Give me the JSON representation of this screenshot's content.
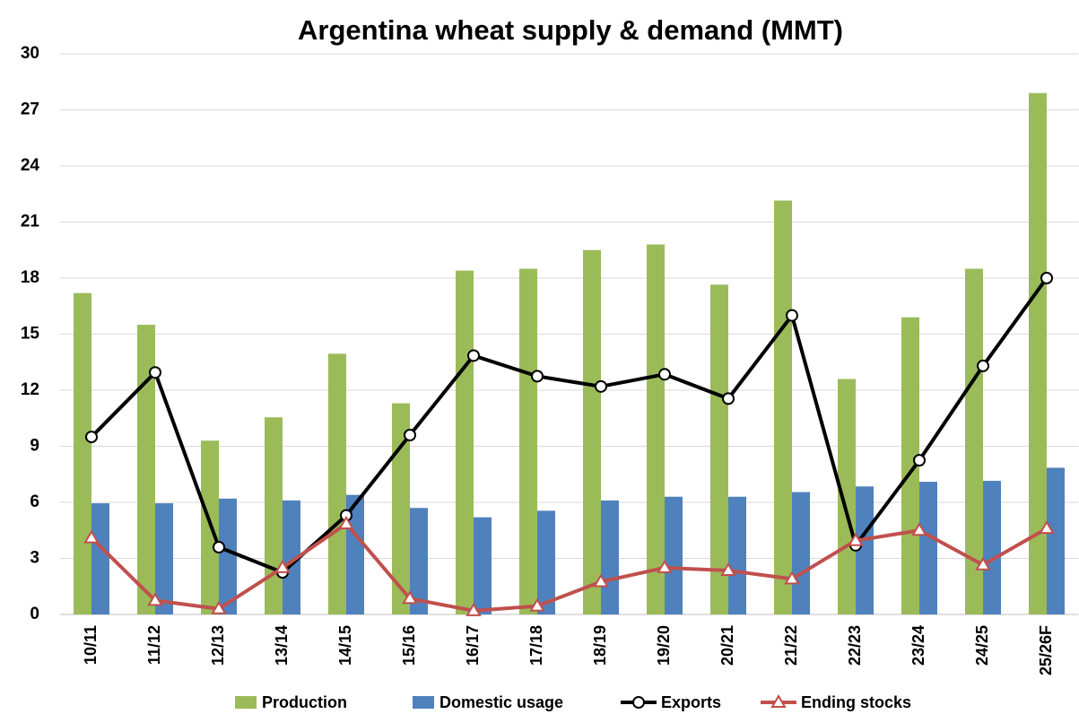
{
  "chart_data": {
    "type": "bar",
    "title": "Argentina wheat supply & demand (MMT)",
    "categories": [
      "10/11",
      "11/12",
      "12/13",
      "13/14",
      "14/15",
      "15/16",
      "16/17",
      "17/18",
      "18/19",
      "19/20",
      "20/21",
      "21/22",
      "22/23",
      "23/24",
      "24/25",
      "25/26F"
    ],
    "series": [
      {
        "name": "Production",
        "type": "bar",
        "color": "#9bbb59",
        "values": [
          17.2,
          15.5,
          9.3,
          10.55,
          13.95,
          11.3,
          18.4,
          18.5,
          19.5,
          19.8,
          17.65,
          22.15,
          12.6,
          15.9,
          18.5,
          27.9
        ]
      },
      {
        "name": "Domestic usage",
        "type": "bar",
        "color": "#4f81bd",
        "values": [
          5.95,
          5.95,
          6.2,
          6.1,
          6.4,
          5.7,
          5.2,
          5.55,
          6.1,
          6.3,
          6.3,
          6.55,
          6.85,
          7.1,
          7.15,
          7.85
        ]
      },
      {
        "name": "Exports",
        "type": "line",
        "marker": "circle",
        "color": "#000000",
        "values": [
          9.5,
          12.95,
          3.6,
          2.25,
          5.3,
          9.6,
          13.85,
          12.75,
          12.2,
          12.85,
          11.55,
          16.0,
          3.7,
          8.25,
          13.3,
          18.0
        ]
      },
      {
        "name": "Ending stocks",
        "type": "line",
        "marker": "triangle",
        "color": "#c0504d",
        "values": [
          4.1,
          0.75,
          0.3,
          2.5,
          4.85,
          0.85,
          0.2,
          0.45,
          1.75,
          2.5,
          2.35,
          1.9,
          3.95,
          4.5,
          2.65,
          4.6
        ]
      }
    ],
    "ylim": [
      0,
      30
    ],
    "yticks": [
      0,
      3,
      6,
      9,
      12,
      15,
      18,
      21,
      24,
      27,
      30
    ],
    "grid": true,
    "legend": "bottom"
  }
}
